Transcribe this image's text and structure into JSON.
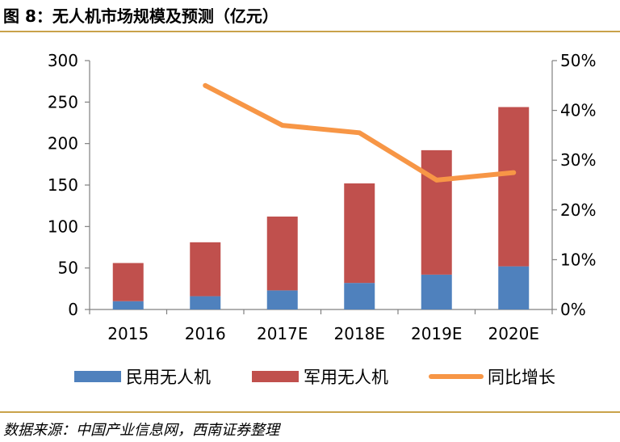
{
  "figure": {
    "title": "图 8：无人机市场规模及预测（亿元）",
    "source": "数据来源：中国产业信息网，西南证券整理"
  },
  "colors": {
    "civil": "#4f81bd",
    "military": "#c0504d",
    "growth": "#f79646",
    "rule": "#c9a24a",
    "axis": "#808080"
  },
  "chart_data": {
    "type": "bar",
    "stacked": true,
    "categories": [
      "2015",
      "2016",
      "2017E",
      "2018E",
      "2019E",
      "2020E"
    ],
    "series": [
      {
        "name": "民用无人机",
        "kind": "bar",
        "axis": "left",
        "values": [
          10,
          16,
          23,
          32,
          42,
          52
        ]
      },
      {
        "name": "军用无人机",
        "kind": "bar",
        "axis": "left",
        "values": [
          46,
          65,
          89,
          120,
          150,
          192
        ]
      },
      {
        "name": "同比增长",
        "kind": "line",
        "axis": "right",
        "values": [
          null,
          45,
          37,
          35.5,
          26,
          27.5
        ]
      }
    ],
    "ylim": [
      0,
      300
    ],
    "yticks": [
      "0",
      "50",
      "100",
      "150",
      "200",
      "250",
      "300"
    ],
    "y2lim": [
      0,
      50
    ],
    "y2ticks": [
      "0%",
      "10%",
      "20%",
      "30%",
      "40%",
      "50%"
    ],
    "grid": false,
    "legend_position": "bottom"
  }
}
